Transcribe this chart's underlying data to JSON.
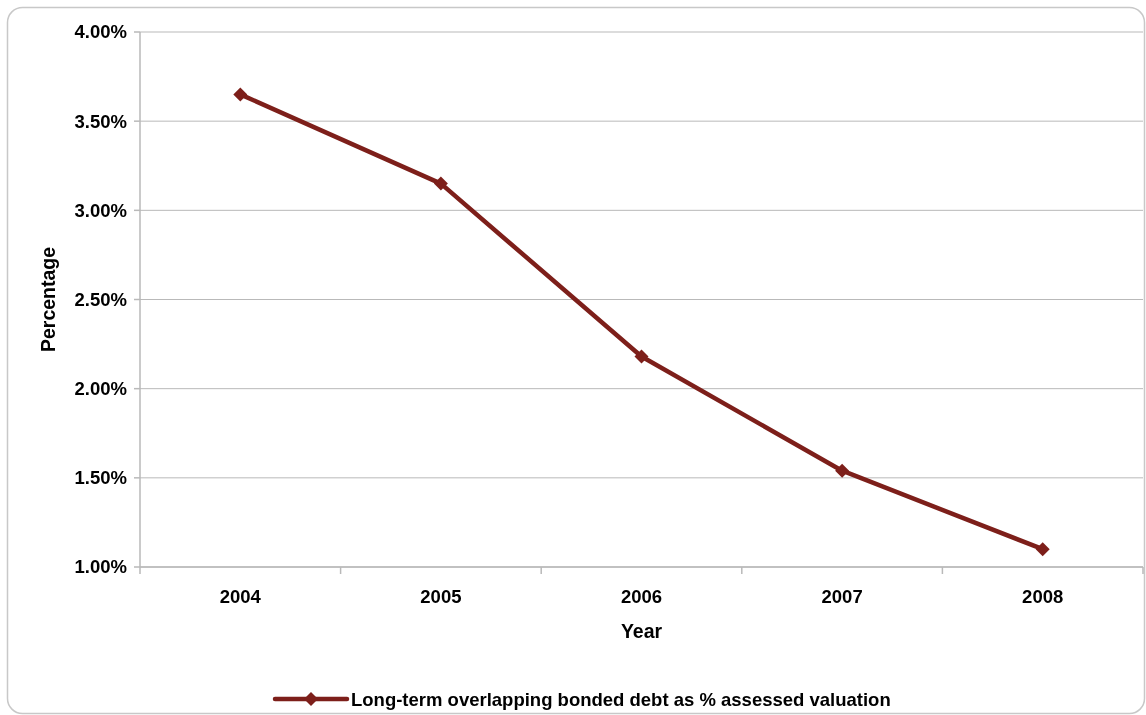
{
  "chart_data": {
    "type": "line",
    "xlabel": "Year",
    "ylabel": "Percentage",
    "categories": [
      "2004",
      "2005",
      "2006",
      "2007",
      "2008"
    ],
    "series": [
      {
        "name": "Long-term overlapping bonded debt as % assessed valuation",
        "color": "#7d1f1a",
        "values": [
          3.65,
          3.15,
          2.18,
          1.54,
          1.1
        ]
      }
    ],
    "ylim": [
      1,
      4
    ],
    "yticks": [
      {
        "value": 1,
        "label": "1.00%"
      },
      {
        "value": 1.5,
        "label": "1.50%"
      },
      {
        "value": 2,
        "label": "2.00%"
      },
      {
        "value": 2.5,
        "label": "2.50%"
      },
      {
        "value": 3,
        "label": "3.00%"
      },
      {
        "value": 3.5,
        "label": "3.50%"
      },
      {
        "value": 4,
        "label": "4.00%"
      }
    ],
    "grid": "y",
    "legend": "bottom",
    "marker": "diamond",
    "line_style": "solid"
  }
}
